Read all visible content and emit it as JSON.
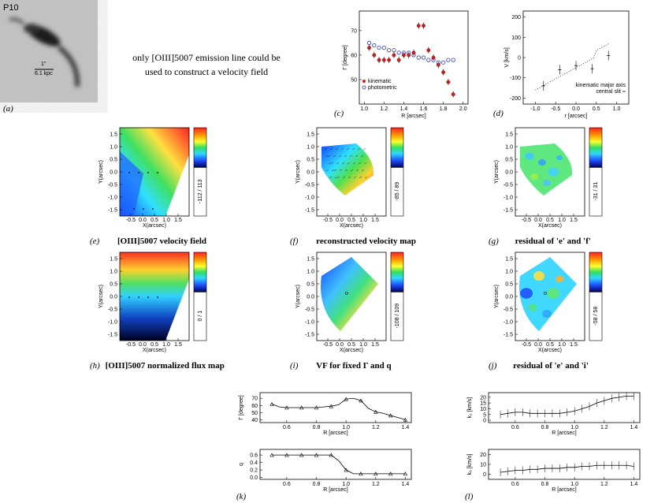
{
  "panel_a": {
    "label": "P10",
    "scale": "1\"",
    "scale_kpc": "6.1 kpc",
    "caption": "(a)"
  },
  "note": {
    "line1": "only [OIII]5007 emission line could be",
    "line2": "used to construct a velocity field"
  },
  "captions": {
    "c": "(c)",
    "d": "(d)",
    "e_letter": "(e)",
    "e_text": "[OIII]5007 velocity field",
    "f_letter": "(f)",
    "f_text": "reconstructed velocity map",
    "g_letter": "(g)",
    "g_text": "residual of 'e' and 'f'",
    "h_letter": "(h)",
    "h_text": "[OIII]5007 normalized flux map",
    "i_letter": "(i)",
    "i_text": "VF for fixed Γ and q",
    "j_letter": "(j)",
    "j_text": "residual of 'e' and 'i'",
    "k": "(k)",
    "l": "(l)"
  },
  "maps": {
    "xlabel": "X(arcsec)",
    "ylabel": "Y(arcsec)",
    "yticks": [
      "1.5",
      "1.0",
      "0.5",
      "0.0",
      "-0.5",
      "-1.0",
      "-1.5"
    ],
    "xticks": [
      "-0.5",
      "0.0",
      "0.5",
      "1.0",
      "1.5"
    ],
    "cbar_e": "-112 / 113",
    "cbar_f": "-85 / 89",
    "cbar_g": "-31 / 31",
    "cbar_h": "0 / 1",
    "cbar_i": "-108 / 109",
    "cbar_j": "-58 / 58"
  },
  "chart_data": [
    {
      "id": "c",
      "type": "scatter",
      "xlabel": "R [arcsec]",
      "ylabel": "Γ [degree]",
      "xticks": [
        "1.0",
        "1.2",
        "1.4",
        "1.6",
        "1.8",
        "2.0"
      ],
      "yticks": [
        "50",
        "60",
        "70"
      ],
      "xlim": [
        0.95,
        2.05
      ],
      "ylim": [
        40,
        78
      ],
      "series": [
        {
          "name": "kinematic",
          "x": [
            1.05,
            1.1,
            1.15,
            1.2,
            1.25,
            1.3,
            1.35,
            1.4,
            1.45,
            1.5,
            1.55,
            1.6,
            1.65,
            1.7,
            1.75,
            1.8,
            1.85,
            1.9
          ],
          "y": [
            63,
            60,
            58,
            58,
            58,
            60,
            58,
            60,
            60,
            61,
            72,
            72,
            62,
            59,
            56,
            53,
            49,
            44
          ]
        },
        {
          "name": "photometric",
          "x": [
            1.05,
            1.1,
            1.15,
            1.2,
            1.25,
            1.3,
            1.35,
            1.4,
            1.45,
            1.5,
            1.55,
            1.6,
            1.65,
            1.7,
            1.75,
            1.8,
            1.85,
            1.9
          ],
          "y": [
            65,
            64,
            63,
            63,
            62,
            62,
            61,
            61,
            61,
            60,
            59,
            59,
            58,
            58,
            57,
            57,
            58,
            58
          ]
        }
      ]
    },
    {
      "id": "d",
      "type": "line",
      "xlabel": "r [arcsec]",
      "ylabel": "V [km/s]",
      "xticks": [
        "-1.0",
        "-0.5",
        "0.0",
        "0.5",
        "1.0"
      ],
      "yticks": [
        "200",
        "100",
        "0",
        "-100",
        "-200"
      ],
      "xlim": [
        -1.3,
        1.3
      ],
      "ylim": [
        -230,
        230
      ],
      "legend1": "kinematic major axis",
      "legend2": "central slit",
      "series": [
        {
          "name": "central slit",
          "x": [
            -0.8,
            -0.4,
            0.0,
            0.4,
            0.8
          ],
          "y": [
            -140,
            -60,
            -40,
            -55,
            10
          ]
        }
      ]
    },
    {
      "id": "k1",
      "type": "line",
      "xlabel": "R [arcsec]",
      "ylabel": "Γ [degree]",
      "xticks": [
        "0.6",
        "0.8",
        "1.0",
        "1.2",
        "1.4"
      ],
      "yticks": [
        "70",
        "60",
        "50",
        "40"
      ],
      "xlim": [
        0.42,
        1.44
      ],
      "ylim": [
        36,
        78
      ],
      "series": [
        {
          "name": "gamma",
          "x": [
            0.5,
            0.55,
            0.6,
            0.65,
            0.7,
            0.75,
            0.8,
            0.85,
            0.9,
            0.95,
            1.0,
            1.05,
            1.1,
            1.15,
            1.2,
            1.25,
            1.3,
            1.35,
            1.4
          ],
          "y": [
            62,
            58,
            57,
            57,
            57,
            57,
            57,
            58,
            59,
            61,
            69,
            70,
            67,
            56,
            51,
            49,
            46,
            43,
            40
          ]
        }
      ]
    },
    {
      "id": "k2",
      "type": "line",
      "xlabel": "R [arcsec]",
      "ylabel": "q",
      "xticks": [
        "0.6",
        "0.8",
        "1.0",
        "1.2",
        "1.4"
      ],
      "yticks": [
        "0.6",
        "0.4",
        "0.2",
        "0.0"
      ],
      "xlim": [
        0.42,
        1.44
      ],
      "ylim": [
        -0.05,
        0.75
      ],
      "series": [
        {
          "name": "q",
          "x": [
            0.5,
            0.55,
            0.6,
            0.65,
            0.7,
            0.75,
            0.8,
            0.85,
            0.9,
            0.95,
            1.0,
            1.05,
            1.1,
            1.15,
            1.2,
            1.25,
            1.3,
            1.35,
            1.4
          ],
          "y": [
            0.6,
            0.6,
            0.6,
            0.6,
            0.6,
            0.6,
            0.6,
            0.6,
            0.6,
            0.45,
            0.2,
            0.1,
            0.1,
            0.1,
            0.1,
            0.1,
            0.1,
            0.1,
            0.1
          ]
        }
      ]
    },
    {
      "id": "l1",
      "type": "line",
      "xlabel": "R [arcsec]",
      "ylabel": "k₁ [km/s]",
      "xticks": [
        "0.6",
        "0.8",
        "1.0",
        "1.2",
        "1.4"
      ],
      "yticks": [
        "20",
        "15",
        "10",
        "5",
        "0"
      ],
      "xlim": [
        0.42,
        1.44
      ],
      "ylim": [
        -2,
        24
      ],
      "series": [
        {
          "name": "k1",
          "x": [
            0.5,
            0.55,
            0.6,
            0.65,
            0.7,
            0.75,
            0.8,
            0.85,
            0.9,
            0.95,
            1.0,
            1.05,
            1.1,
            1.15,
            1.2,
            1.25,
            1.3,
            1.35,
            1.4
          ],
          "y": [
            5,
            6,
            7,
            7,
            6,
            6,
            6,
            6,
            6,
            7,
            8,
            10,
            12,
            15,
            17,
            19,
            20,
            21,
            21
          ]
        }
      ]
    },
    {
      "id": "l2",
      "type": "line",
      "xlabel": "R [arcsec]",
      "ylabel": "k₅ [km/s]",
      "xticks": [
        "0.6",
        "0.8",
        "1.0",
        "1.2",
        "1.4"
      ],
      "yticks": [
        "20",
        "10",
        "0"
      ],
      "xlim": [
        0.42,
        1.44
      ],
      "ylim": [
        -5,
        25
      ],
      "series": [
        {
          "name": "k5",
          "x": [
            0.5,
            0.55,
            0.6,
            0.65,
            0.7,
            0.75,
            0.8,
            0.85,
            0.9,
            0.95,
            1.0,
            1.05,
            1.1,
            1.15,
            1.2,
            1.25,
            1.3,
            1.35,
            1.4
          ],
          "y": [
            2,
            3,
            4,
            4,
            5,
            5,
            6,
            6,
            6,
            7,
            7,
            8,
            8,
            9,
            9,
            9,
            9,
            9,
            8
          ]
        }
      ]
    }
  ]
}
